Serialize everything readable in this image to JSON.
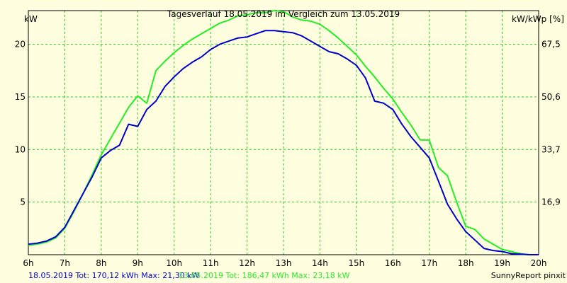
{
  "chart_data": {
    "type": "line",
    "title": "Tagesverlauf 18.05.2019 im Vergleich zum 13.05.2019",
    "ylabel_left": "kW",
    "ylabel_right": "kW/kWp [%]",
    "x_ticks": [
      "6h",
      "7h",
      "8h",
      "9h",
      "10h",
      "11h",
      "12h",
      "13h",
      "14h",
      "15h",
      "16h",
      "17h",
      "18h",
      "19h",
      "20h"
    ],
    "y_ticks_left": [
      "5",
      "10",
      "15",
      "20"
    ],
    "y_ticks_left_values": [
      5,
      10,
      15,
      20
    ],
    "y_ticks_right": [
      "16,9",
      "33,7",
      "50,6",
      "67,5"
    ],
    "ylim": [
      0,
      23.2
    ],
    "xlim": [
      6,
      20
    ],
    "grid": true,
    "series": [
      {
        "name": "18.05.2019",
        "color": "#0000cc",
        "x": [
          6.0,
          6.25,
          6.5,
          6.75,
          7.0,
          7.25,
          7.5,
          7.75,
          8.0,
          8.25,
          8.5,
          8.75,
          9.0,
          9.25,
          9.5,
          9.75,
          10.0,
          10.25,
          10.5,
          10.75,
          11.0,
          11.25,
          11.5,
          11.75,
          12.0,
          12.25,
          12.5,
          12.75,
          13.0,
          13.25,
          13.5,
          13.75,
          14.0,
          14.25,
          14.5,
          14.75,
          15.0,
          15.25,
          15.5,
          15.75,
          16.0,
          16.25,
          16.5,
          16.75,
          17.0,
          17.25,
          17.5,
          17.75,
          18.0,
          18.25,
          18.5,
          18.75,
          19.0,
          19.25,
          19.5,
          19.75,
          20.0
        ],
        "values": [
          1.0,
          1.1,
          1.3,
          1.7,
          2.6,
          4.2,
          5.8,
          7.4,
          9.2,
          9.9,
          10.4,
          12.4,
          12.2,
          13.8,
          14.6,
          16.0,
          16.9,
          17.7,
          18.3,
          18.8,
          19.5,
          20.0,
          20.3,
          20.6,
          20.7,
          21.0,
          21.3,
          21.3,
          21.2,
          21.1,
          20.8,
          20.3,
          19.8,
          19.3,
          19.1,
          18.6,
          18.0,
          16.8,
          14.6,
          14.4,
          13.8,
          12.4,
          11.2,
          10.2,
          9.2,
          7.0,
          4.8,
          3.4,
          2.2,
          1.4,
          0.6,
          0.4,
          0.3,
          0.1,
          0.05,
          0.0,
          0.0
        ]
      },
      {
        "name": "13.05.2019",
        "color": "#22ee22",
        "x": [
          6.0,
          6.25,
          6.5,
          6.75,
          7.0,
          7.25,
          7.5,
          7.75,
          8.0,
          8.25,
          8.5,
          8.75,
          9.0,
          9.25,
          9.5,
          9.75,
          10.0,
          10.25,
          10.5,
          10.75,
          11.0,
          11.25,
          11.5,
          11.75,
          12.0,
          12.25,
          12.5,
          12.75,
          13.0,
          13.25,
          13.5,
          13.75,
          14.0,
          14.25,
          14.5,
          14.75,
          15.0,
          15.25,
          15.5,
          15.75,
          16.0,
          16.25,
          16.5,
          16.75,
          17.0,
          17.25,
          17.5,
          17.75,
          18.0,
          18.25,
          18.5,
          18.75,
          19.0,
          19.25,
          19.5,
          19.75,
          20.0
        ],
        "values": [
          0.9,
          1.0,
          1.2,
          1.6,
          2.5,
          4.1,
          5.8,
          7.6,
          9.5,
          11.0,
          12.5,
          14.0,
          15.1,
          14.4,
          17.5,
          18.4,
          19.2,
          19.9,
          20.5,
          21.0,
          21.5,
          22.0,
          22.3,
          22.7,
          22.8,
          23.0,
          23.0,
          23.2,
          23.1,
          22.6,
          22.3,
          22.2,
          21.9,
          21.3,
          20.6,
          19.8,
          19.0,
          17.9,
          16.9,
          15.8,
          14.8,
          13.5,
          12.3,
          10.9,
          10.9,
          8.3,
          7.5,
          5.0,
          2.7,
          2.4,
          1.5,
          1.0,
          0.5,
          0.3,
          0.1,
          0.0,
          0.0
        ]
      }
    ],
    "legend": [
      {
        "text": "18.05.2019 Tot: 170,12 kWh Max: 21,30 kW",
        "color": "#0000cc"
      },
      {
        "text": "13.05.2019 Tot: 186,47 kWh Max: 23,18 kW",
        "color": "#22ee22"
      }
    ],
    "footer_right": "SunnyReport pinxit"
  },
  "colors": {
    "background": "#ffffe0",
    "plot_background": "#ffffe0",
    "grid": "#22cc22"
  }
}
